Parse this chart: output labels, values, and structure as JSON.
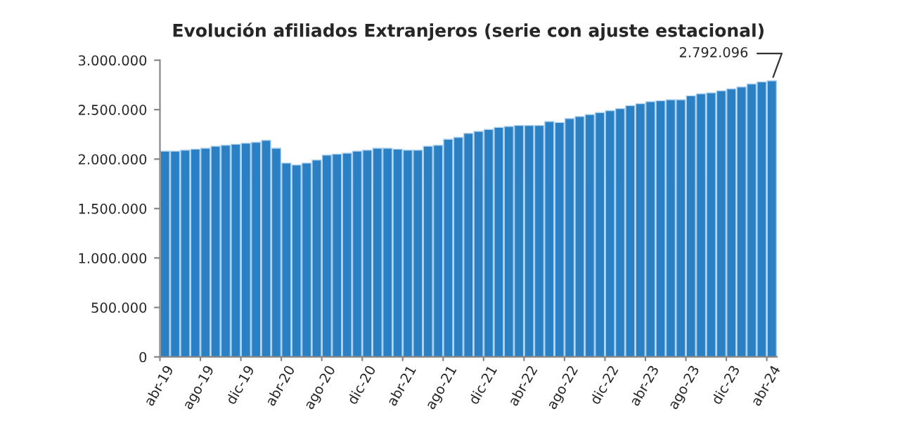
{
  "chart_data": {
    "type": "bar",
    "title": "Evolución afiliados Extranjeros (serie con ajuste estacional)",
    "categories": [
      "abr-19",
      null,
      null,
      null,
      "ago-19",
      null,
      null,
      null,
      "dic-19",
      null,
      null,
      null,
      "abr-20",
      null,
      null,
      null,
      "ago-20",
      null,
      null,
      null,
      "dic-20",
      null,
      null,
      null,
      "abr-21",
      null,
      null,
      null,
      "ago-21",
      null,
      null,
      null,
      "dic-21",
      null,
      null,
      null,
      "abr-22",
      null,
      null,
      null,
      "ago-22",
      null,
      null,
      null,
      "dic-22",
      null,
      null,
      null,
      "abr-23",
      null,
      null,
      null,
      "ago-23",
      null,
      null,
      null,
      "dic-23",
      null,
      null,
      null,
      "abr-24"
    ],
    "values": [
      2080000,
      2080000,
      2090000,
      2100000,
      2110000,
      2130000,
      2140000,
      2150000,
      2160000,
      2170000,
      2190000,
      2110000,
      1960000,
      1940000,
      1960000,
      1990000,
      2040000,
      2050000,
      2060000,
      2080000,
      2090000,
      2110000,
      2110000,
      2100000,
      2090000,
      2090000,
      2130000,
      2140000,
      2200000,
      2220000,
      2260000,
      2280000,
      2300000,
      2320000,
      2330000,
      2340000,
      2340000,
      2340000,
      2380000,
      2370000,
      2410000,
      2430000,
      2450000,
      2470000,
      2490000,
      2510000,
      2540000,
      2560000,
      2580000,
      2590000,
      2600000,
      2600000,
      2640000,
      2660000,
      2670000,
      2690000,
      2710000,
      2730000,
      2760000,
      2780000,
      2792096
    ],
    "color": "#2b7fc3",
    "ylim": [
      0,
      3000000
    ],
    "yticks": [
      {
        "value": 0,
        "label": "0"
      },
      {
        "value": 500000,
        "label": "500.000"
      },
      {
        "value": 1000000,
        "label": "1.000.000"
      },
      {
        "value": 1500000,
        "label": "1.500.000"
      },
      {
        "value": 2000000,
        "label": "2.000.000"
      },
      {
        "value": 2500000,
        "label": "2.500.000"
      },
      {
        "value": 3000000,
        "label": "3.000.000"
      }
    ],
    "annotations": [
      {
        "text": "2.792.096",
        "x": "abr-24",
        "y": 2792096
      }
    ],
    "grid": false,
    "legend": false
  }
}
